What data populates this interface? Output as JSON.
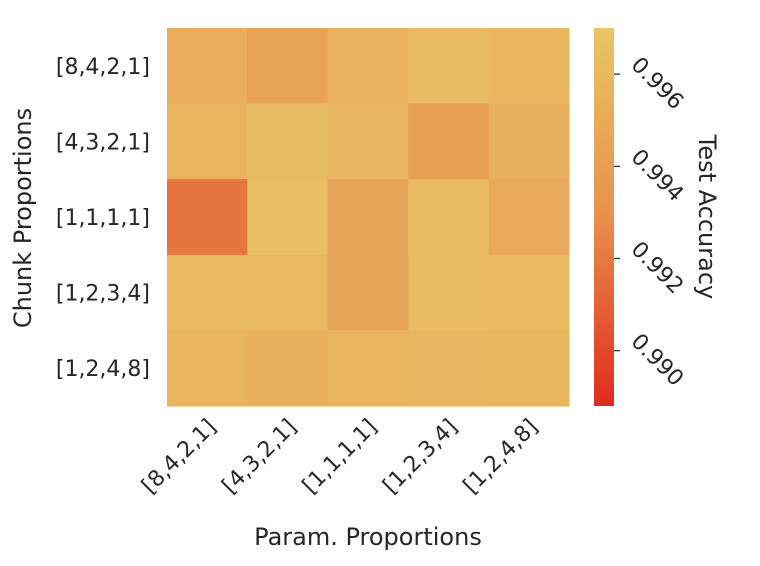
{
  "chart_data": {
    "type": "heatmap",
    "title": "",
    "xlabel": "Param. Proportions",
    "ylabel": "Chunk Proportions",
    "x_categories": [
      "[8,4,2,1]",
      "[4,3,2,1]",
      "[1,1,1,1]",
      "[1,2,3,4]",
      "[1,2,4,8]"
    ],
    "y_categories": [
      "[8,4,2,1]",
      "[4,3,2,1]",
      "[1,1,1,1]",
      "[1,2,3,4]",
      "[1,2,4,8]"
    ],
    "values": [
      [
        0.9952,
        0.9944,
        0.9956,
        0.9964,
        0.9958
      ],
      [
        0.9957,
        0.9963,
        0.996,
        0.9942,
        0.9955
      ],
      [
        0.9918,
        0.9966,
        0.9945,
        0.9963,
        0.995
      ],
      [
        0.9961,
        0.9961,
        0.9945,
        0.9964,
        0.9961
      ],
      [
        0.9958,
        0.9955,
        0.9957,
        0.996,
        0.9959
      ]
    ],
    "colorbar": {
      "label": "Test Accuracy",
      "range": [
        0.9888,
        0.997
      ],
      "ticks": [
        0.99,
        0.992,
        0.994,
        0.996
      ],
      "tick_labels": [
        "0.990",
        "0.992",
        "0.994",
        "0.996"
      ],
      "colors": {
        "low": "#e02b20",
        "mid": "#e8904a",
        "high": "#e9c468"
      }
    }
  }
}
